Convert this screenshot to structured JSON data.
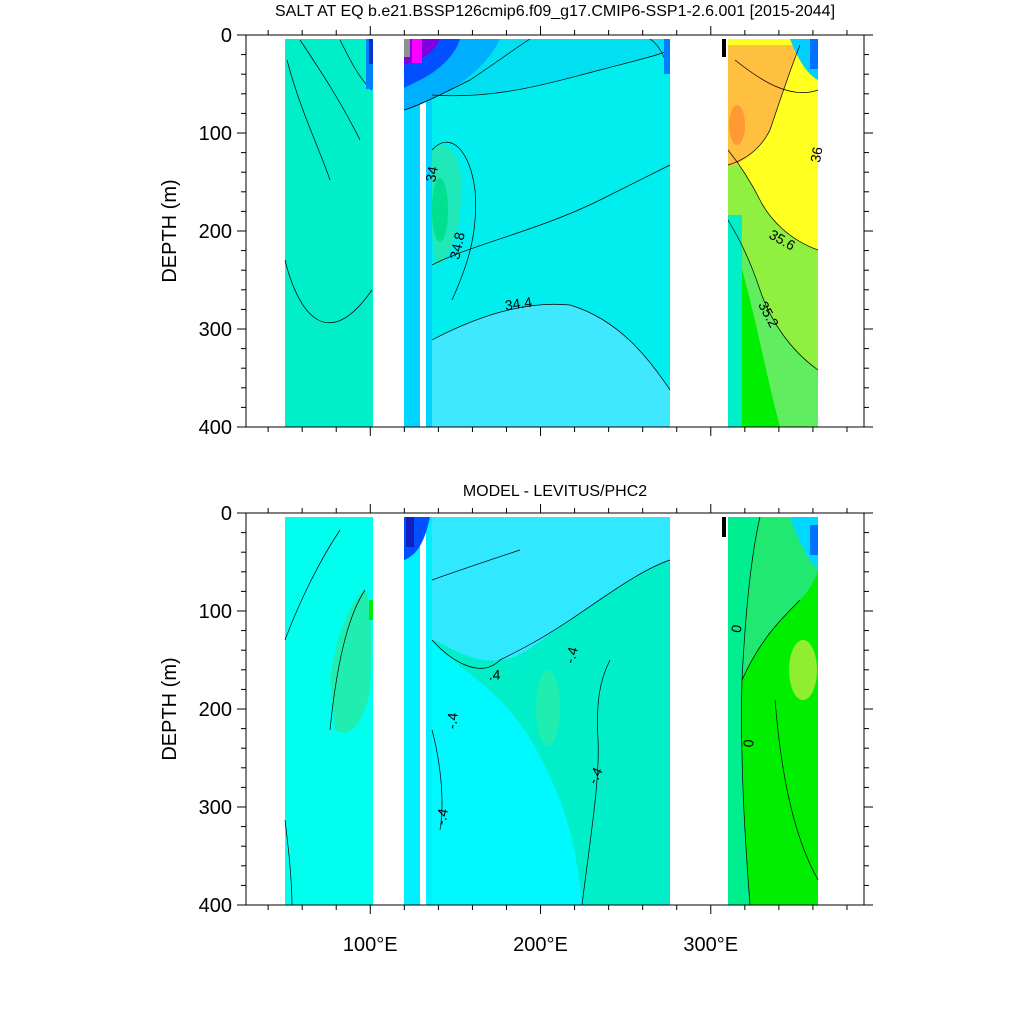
{
  "chart_data": [
    {
      "type": "heatmap",
      "title": "SALT AT EQ b.e21.BSSP126cmip6.f09_g17.CMIP6-SSP1-2.6.001 [2015-2044]",
      "ylabel": "DEPTH (m)",
      "xlabel": "",
      "xlim": [
        27,
        390
      ],
      "ylim": [
        400,
        0
      ],
      "y_reversed": true,
      "yticks": [
        0,
        100,
        200,
        300,
        400
      ],
      "ytick_labels": [
        "0",
        "100",
        "200",
        "300",
        "400"
      ],
      "xticks": [
        100,
        200,
        300
      ],
      "xtick_labels": [],
      "contour_labels": [
        {
          "text": "34",
          "x": 136,
          "y": 142,
          "rotate": -80
        },
        {
          "text": "34.8",
          "x": 151,
          "y": 215,
          "rotate": -78
        },
        {
          "text": "34.4",
          "x": 187,
          "y": 274,
          "rotate": -8
        },
        {
          "text": "36",
          "x": 362,
          "y": 122,
          "rotate": -80
        },
        {
          "text": "35.6",
          "x": 342,
          "y": 209,
          "rotate": 30
        },
        {
          "text": "35.2",
          "x": 334,
          "y": 285,
          "rotate": 62
        }
      ]
    },
    {
      "type": "heatmap",
      "title": "MODEL - LEVITUS/PHC2",
      "ylabel": "DEPTH (m)",
      "xlabel": "",
      "xlim": [
        27,
        390
      ],
      "ylim": [
        400,
        0
      ],
      "y_reversed": true,
      "yticks": [
        0,
        100,
        200,
        300,
        400
      ],
      "ytick_labels": [
        "0",
        "100",
        "200",
        "300",
        "400"
      ],
      "xticks": [
        100,
        200,
        300
      ],
      "xtick_labels": [
        "100°E",
        "200°E",
        "300°E"
      ],
      "contour_labels": [
        {
          "text": "0",
          "x": 315,
          "y": 118,
          "rotate": -80
        },
        {
          "text": "0",
          "x": 322,
          "y": 235,
          "rotate": -85
        },
        {
          "text": ".4",
          "x": 173,
          "y": 165,
          "rotate": 0
        },
        {
          "text": "-.4",
          "x": 218,
          "y": 145,
          "rotate": -75
        },
        {
          "text": "-.4",
          "x": 148,
          "y": 212,
          "rotate": -85
        },
        {
          "text": "-.4",
          "x": 232,
          "y": 268,
          "rotate": -65
        },
        {
          "text": "-.4",
          "x": 142,
          "y": 310,
          "rotate": -80
        }
      ]
    }
  ]
}
